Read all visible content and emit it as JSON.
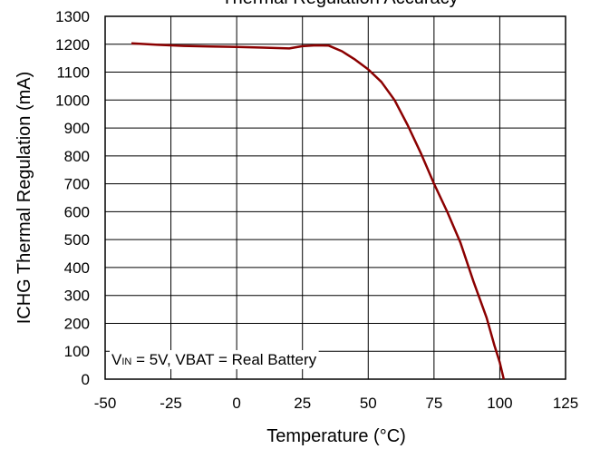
{
  "chart_data": {
    "type": "line",
    "title": "Thermal Regulation Accuracy",
    "xlabel": "Temperature (°C)",
    "ylabel": "ICHG Thermal Regulation (mA)",
    "xlim": [
      -50,
      125
    ],
    "ylim": [
      0,
      1300
    ],
    "x_ticks": [
      -50,
      -25,
      0,
      25,
      50,
      75,
      100,
      125
    ],
    "y_ticks": [
      0,
      100,
      200,
      300,
      400,
      500,
      600,
      700,
      800,
      900,
      1000,
      1100,
      1200,
      1300
    ],
    "grid": true,
    "annotation": {
      "prefix": "V",
      "subscript": "IN",
      "rest": " = 5V, VBAT = Real Battery"
    },
    "series": [
      {
        "color": "#8b0000",
        "x": [
          -40,
          -30,
          -20,
          -10,
          0,
          10,
          20,
          25,
          30,
          35,
          40,
          45,
          50,
          55,
          60,
          65,
          70,
          75,
          80,
          85,
          90,
          95,
          98,
          100,
          101.5
        ],
        "y": [
          1203,
          1198,
          1194,
          1192,
          1190,
          1188,
          1185,
          1193,
          1196,
          1195,
          1175,
          1145,
          1110,
          1065,
          1000,
          910,
          810,
          700,
          600,
          490,
          350,
          220,
          120,
          60,
          0
        ]
      }
    ]
  }
}
